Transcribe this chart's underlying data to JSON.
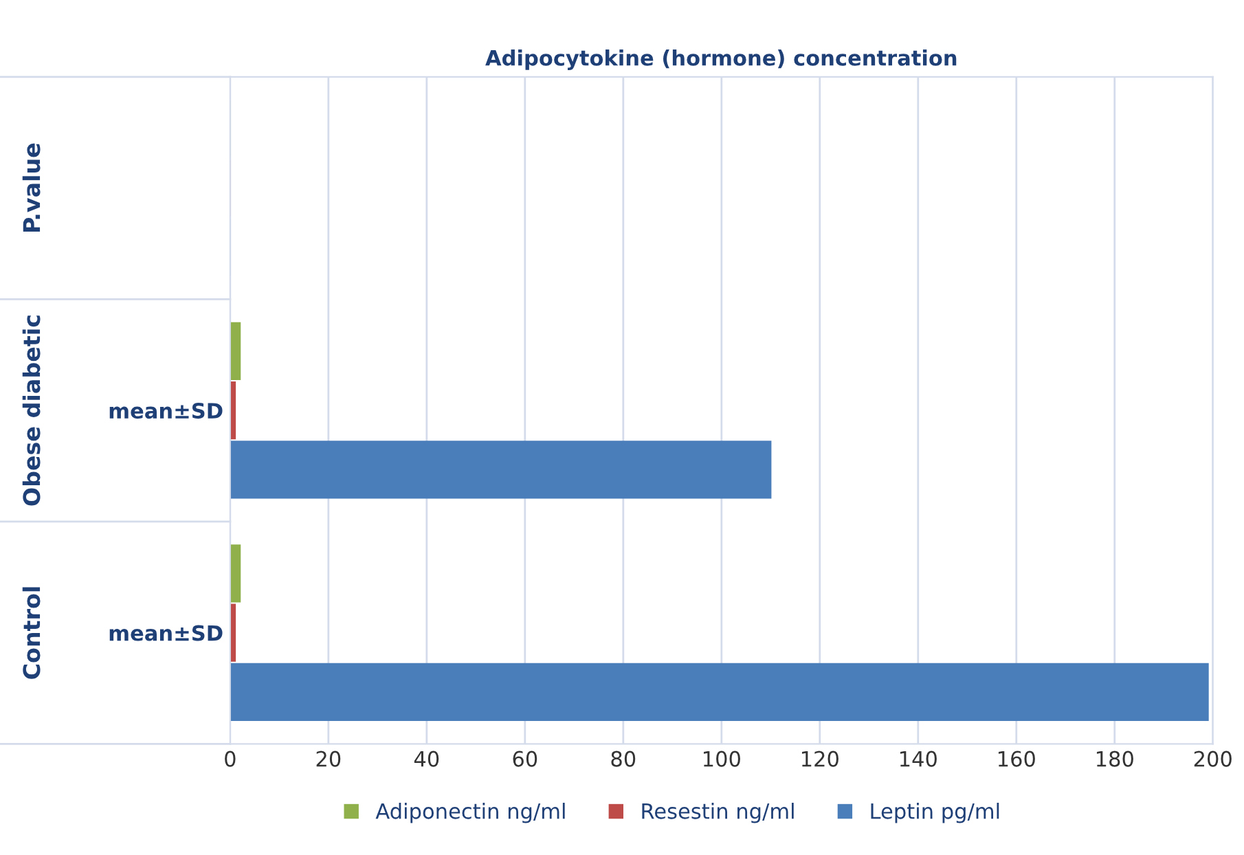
{
  "chart_data": {
    "type": "bar",
    "orientation": "horizontal",
    "title": "Adipocytokine (hormone) concentration",
    "categories": [
      null,
      "mean±SD",
      "mean±SD"
    ],
    "annotations": [
      "P.value",
      "Obese diabetic",
      "Control"
    ],
    "series": [
      {
        "name": "Adiponectin ng/ml",
        "color": "#8fb04a",
        "values": [
          0,
          2,
          2
        ]
      },
      {
        "name": "Resestin ng/ml",
        "color": "#be4b48",
        "values": [
          0,
          1,
          1
        ]
      },
      {
        "name": "Leptin pg/ml",
        "color": "#4a7ebb",
        "values": [
          0,
          110,
          199
        ]
      }
    ],
    "xlim": [
      0,
      200
    ],
    "xticks": [
      0,
      20,
      40,
      60,
      80,
      100,
      120,
      140,
      160,
      180,
      200
    ],
    "grid": "x",
    "legend": "bottom"
  }
}
